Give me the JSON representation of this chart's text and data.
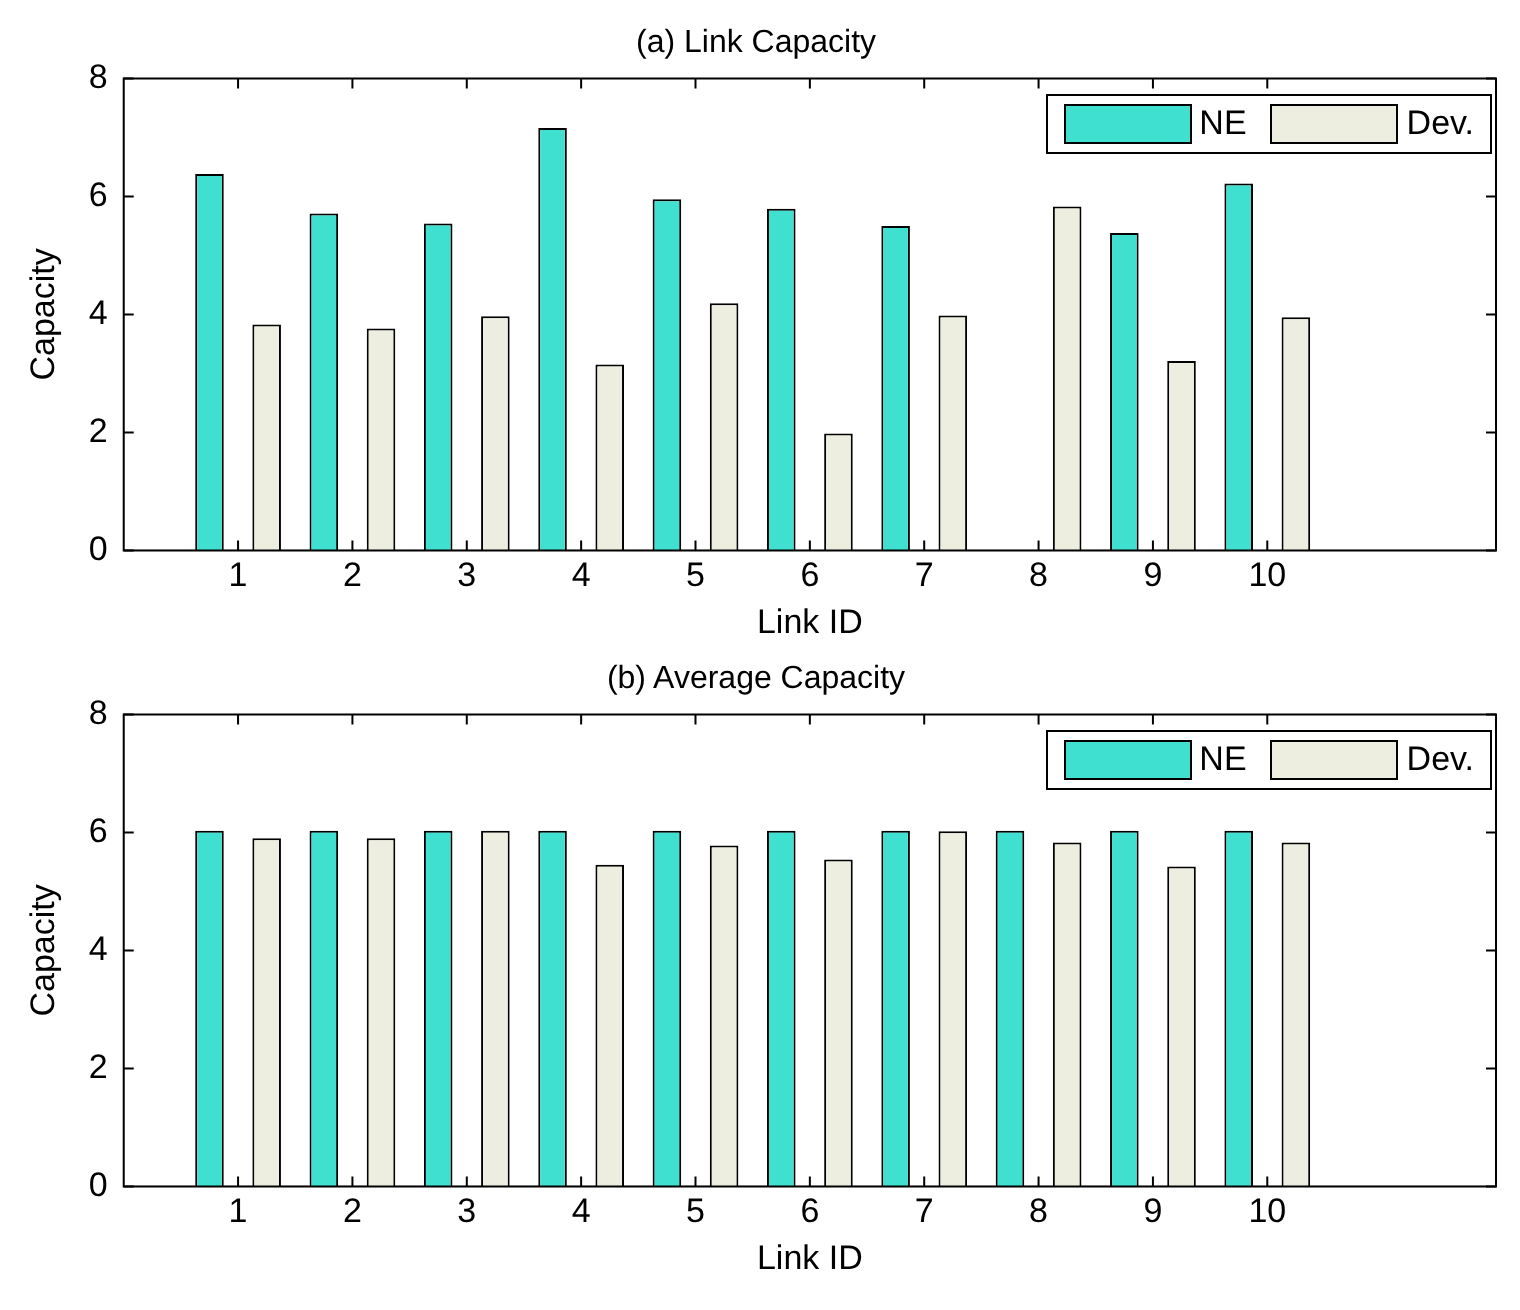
{
  "chart_data": [
    {
      "type": "bar",
      "title": "(a) Link Capacity",
      "xlabel": "Link ID",
      "ylabel": "Capacity",
      "x": [
        1,
        2,
        3,
        4,
        5,
        6,
        7,
        8,
        9,
        10
      ],
      "xlim": [
        0,
        12
      ],
      "xticks": [
        1,
        2,
        3,
        4,
        5,
        6,
        7,
        8,
        9,
        10
      ],
      "ylim": [
        0,
        8
      ],
      "yticks": [
        0,
        2,
        4,
        6,
        8
      ],
      "grid": false,
      "legend": "top right",
      "series": [
        {
          "name": "NE",
          "color": "#40e0d0",
          "values": [
            6.38,
            5.71,
            5.54,
            7.16,
            5.95,
            5.79,
            5.5,
            null,
            5.38,
            6.22
          ]
        },
        {
          "name": "Dev.",
          "color": "#eeeee0",
          "values": [
            3.83,
            3.76,
            3.97,
            3.15,
            4.19,
            1.98,
            3.98,
            5.83,
            3.21,
            3.95
          ]
        }
      ]
    },
    {
      "type": "bar",
      "title": "(b) Average Capacity",
      "xlabel": "Link ID",
      "ylabel": "Capacity",
      "x": [
        1,
        2,
        3,
        4,
        5,
        6,
        7,
        8,
        9,
        10
      ],
      "xlim": [
        0,
        12
      ],
      "xticks": [
        1,
        2,
        3,
        4,
        5,
        6,
        7,
        8,
        9,
        10
      ],
      "ylim": [
        0,
        8
      ],
      "yticks": [
        0,
        2,
        4,
        6,
        8
      ],
      "grid": false,
      "legend": "top right",
      "series": [
        {
          "name": "NE",
          "color": "#40e0d0",
          "values": [
            6.03,
            6.03,
            6.03,
            6.03,
            6.03,
            6.03,
            6.03,
            6.03,
            6.03,
            6.03
          ]
        },
        {
          "name": "Dev.",
          "color": "#eeeee0",
          "values": [
            5.9,
            5.9,
            6.03,
            5.45,
            5.78,
            5.54,
            6.02,
            5.83,
            5.42,
            5.83
          ]
        }
      ]
    }
  ]
}
